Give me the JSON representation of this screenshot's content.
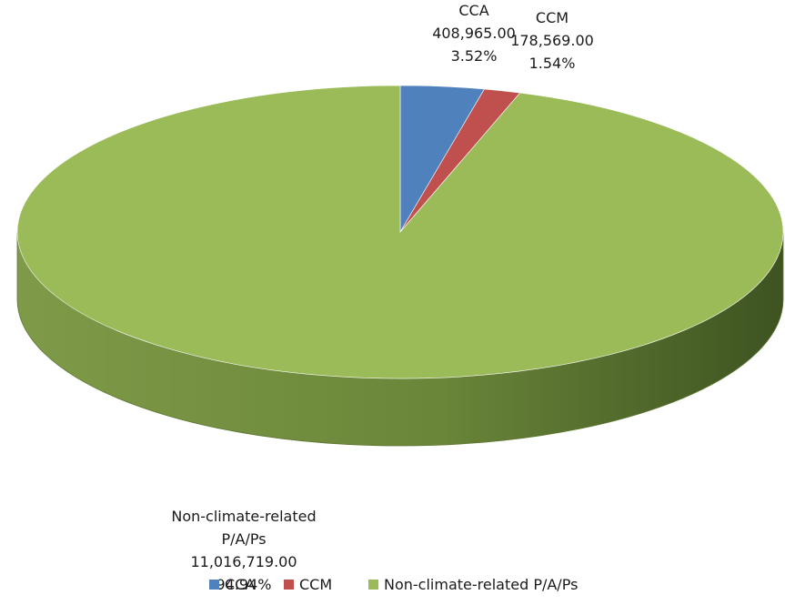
{
  "chart_data": {
    "type": "pie",
    "style": "3d",
    "labels": [
      "CCA",
      "CCM",
      "Non-climate-related P/A/Ps"
    ],
    "values": [
      408965.0,
      178569.0,
      11016719.0
    ],
    "value_labels": [
      "408,965.00",
      "178,569.00",
      "11,016,719.00"
    ],
    "percent_labels": [
      "3.52%",
      "1.54%",
      "94.94%"
    ],
    "data_label_names": [
      "CCA",
      "CCM",
      "Non-climate-related P/A/Ps"
    ],
    "colors": [
      "#4F81BD",
      "#C0504D",
      "#9BBB59"
    ],
    "legend_position": "bottom",
    "title": ""
  }
}
